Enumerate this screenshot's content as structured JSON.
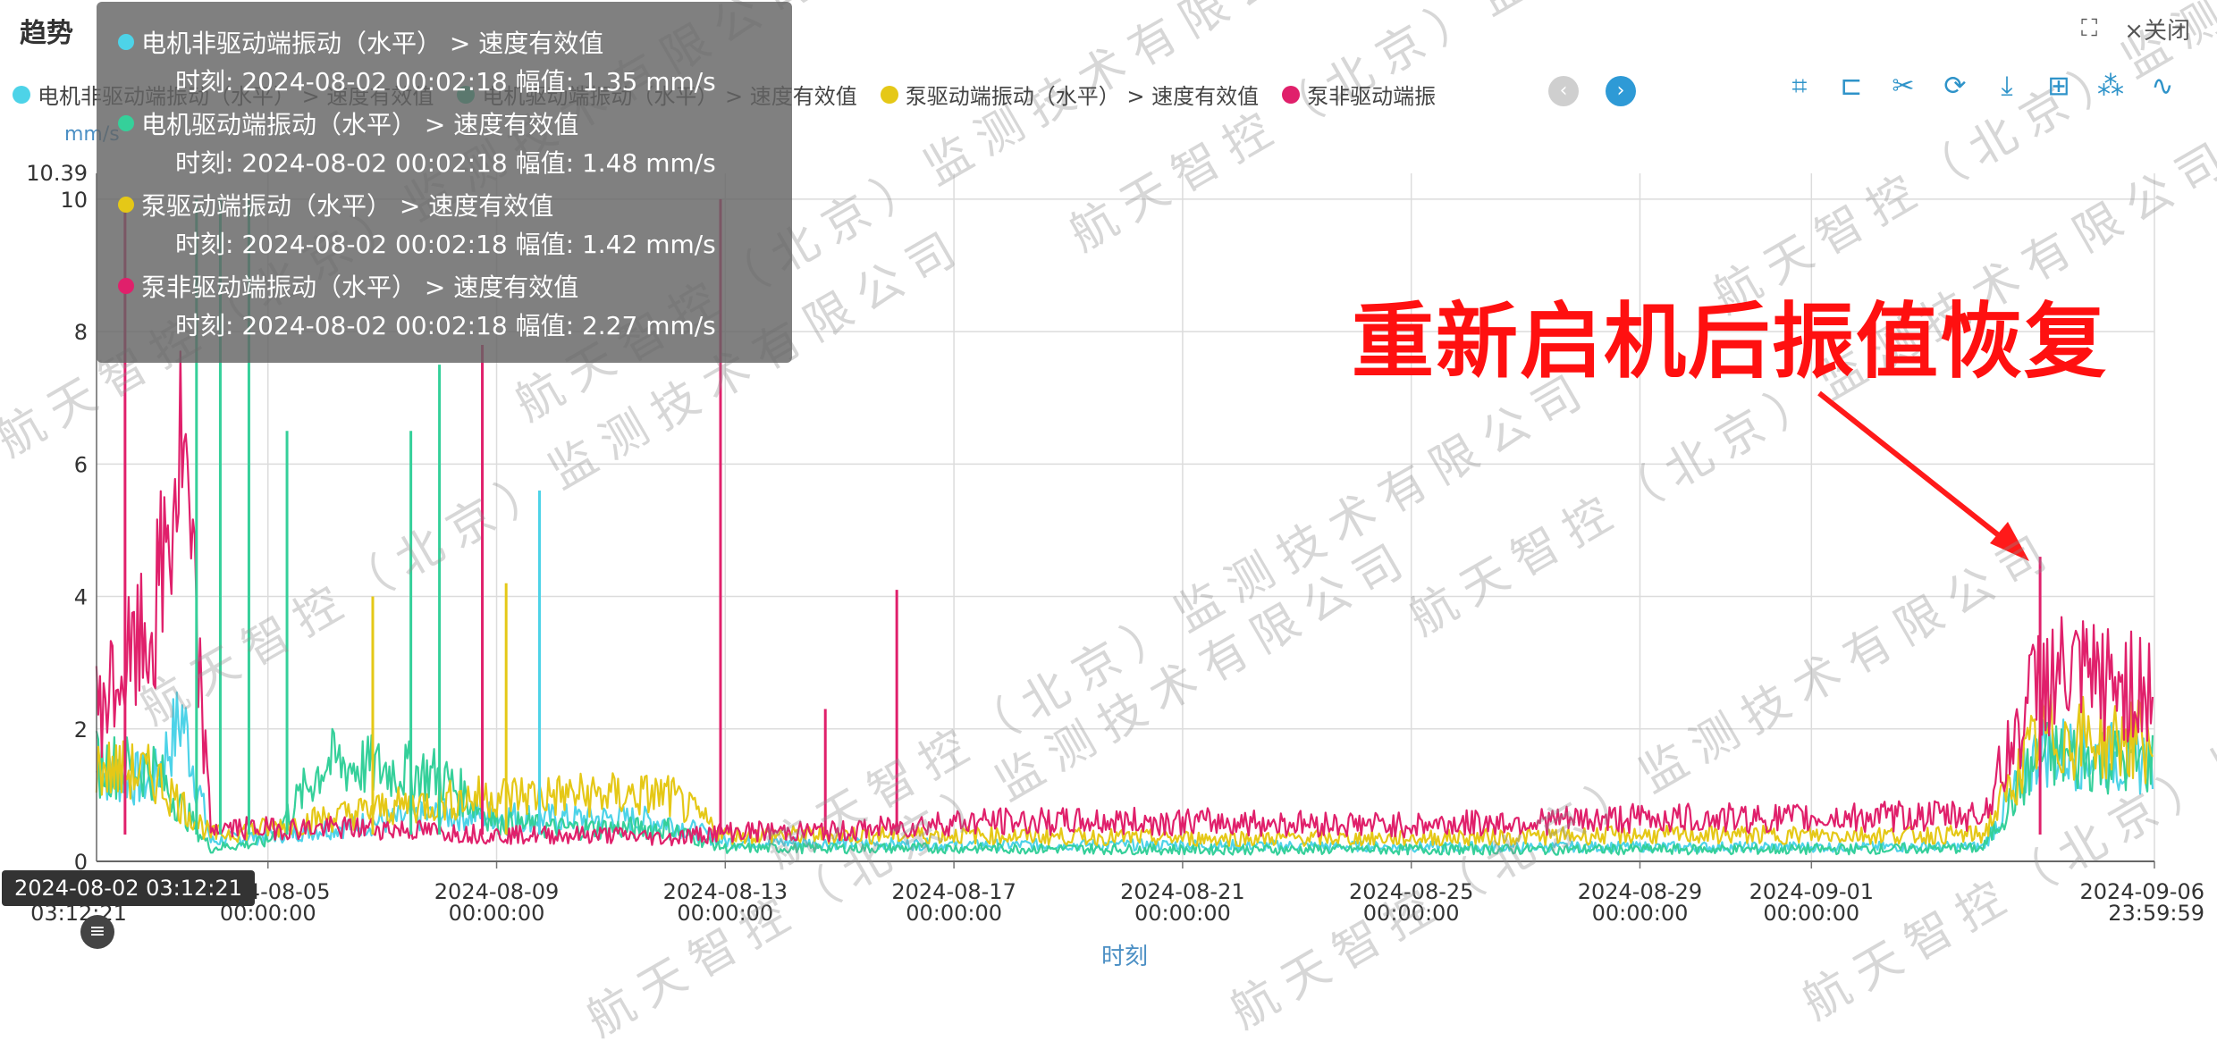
{
  "panel": {
    "title": "趋势",
    "fullscreen_icon": "⛶",
    "close_label": "×关闭"
  },
  "legend": {
    "items": [
      {
        "label": "电机非驱动端振动（水平） > 速度有效值",
        "color": "#4dd3e8"
      },
      {
        "label": "电机驱动端振动（水平） > 速度有效值",
        "color": "#35d09a"
      },
      {
        "label": "泵驱动端振动（水平） > 速度有效值",
        "color": "#e5c817"
      },
      {
        "label": "泵非驱动端振",
        "color": "#e0206b"
      }
    ],
    "prev_icon": "‹",
    "next_icon": "›"
  },
  "toolbox": {
    "tools": [
      {
        "name": "zoom-select-icon",
        "glyph": "⌗"
      },
      {
        "name": "zoom-back-icon",
        "glyph": "⊏"
      },
      {
        "name": "cut-icon",
        "glyph": "✂"
      },
      {
        "name": "refresh-icon",
        "glyph": "⟳"
      },
      {
        "name": "download-icon",
        "glyph": "⤓"
      },
      {
        "name": "add-icon",
        "glyph": "⊞"
      },
      {
        "name": "scatter-icon",
        "glyph": "⁂"
      },
      {
        "name": "line-icon",
        "glyph": "∿"
      }
    ]
  },
  "tooltip": {
    "entries": [
      {
        "series": "电机非驱动端振动（水平） > 速度有效值",
        "time_label": "时刻:",
        "time": "2024-08-02 00:02:18",
        "amp_label": "幅值:",
        "amp": "1.35 mm/s",
        "color": "#4dd3e8"
      },
      {
        "series": "电机驱动端振动（水平） > 速度有效值",
        "time_label": "时刻:",
        "time": "2024-08-02 00:02:18",
        "amp_label": "幅值:",
        "amp": "1.48 mm/s",
        "color": "#35d09a"
      },
      {
        "series": "泵驱动端振动（水平） > 速度有效值",
        "time_label": "时刻:",
        "time": "2024-08-02 00:02:18",
        "amp_label": "幅值:",
        "amp": "1.42 mm/s",
        "color": "#e5c817"
      },
      {
        "series": "泵非驱动端振动（水平） > 速度有效值",
        "time_label": "时刻:",
        "time": "2024-08-02 00:02:18",
        "amp_label": "幅值:",
        "amp": "2.27 mm/s",
        "color": "#e0206b"
      }
    ]
  },
  "hover_time": "2024-08-02 03:12:21",
  "zoom_handle_icon": "≡",
  "annotation": "重新启机后振值恢复",
  "watermarks": [
    "航天智控（北京）监测技术有限公司"
  ],
  "chart_data": {
    "type": "line",
    "ylabel": "mm/s",
    "xlabel": "时刻",
    "ylim": [
      0,
      10.39
    ],
    "y_ticks": [
      "0",
      "2",
      "4",
      "6",
      "8",
      "10"
    ],
    "y_max_label": "10.39",
    "x_ticks": [
      {
        "date": "2024-08-05",
        "time": "00:00:00"
      },
      {
        "date": "2024-08-09",
        "time": "00:00:00"
      },
      {
        "date": "2024-08-13",
        "time": "00:00:00"
      },
      {
        "date": "2024-08-17",
        "time": "00:00:00"
      },
      {
        "date": "2024-08-21",
        "time": "00:00:00"
      },
      {
        "date": "2024-08-25",
        "time": "00:00:00"
      },
      {
        "date": "2024-08-29",
        "time": "00:00:00"
      },
      {
        "date": "2024-09-01",
        "time": "00:00:00"
      },
      {
        "date": "2024-09-06",
        "time": "23:59:59"
      }
    ],
    "x_start_label": "03:12:21",
    "xlim": [
      "2024-08-02 00:02:18",
      "2024-09-06 23:59:59"
    ],
    "grid": true,
    "series": [
      {
        "name": "电机非驱动端振动（水平） > 速度有效值",
        "color": "#4dd3e8",
        "points": [
          [
            "2024-08-02",
            1.35
          ],
          [
            "2024-08-03",
            1.2
          ],
          [
            "2024-08-03 12:00",
            2.2
          ],
          [
            "2024-08-04",
            0.3
          ],
          [
            "2024-08-05",
            0.4
          ],
          [
            "2024-08-06",
            0.5
          ],
          [
            "2024-08-07",
            0.6
          ],
          [
            "2024-08-08",
            0.7
          ],
          [
            "2024-08-09",
            0.7
          ],
          [
            "2024-08-10",
            0.65
          ],
          [
            "2024-08-11",
            0.65
          ],
          [
            "2024-08-12",
            0.6
          ],
          [
            "2024-08-13",
            0.3
          ],
          [
            "2024-08-17",
            0.25
          ],
          [
            "2024-08-21",
            0.25
          ],
          [
            "2024-08-25",
            0.22
          ],
          [
            "2024-08-29",
            0.22
          ],
          [
            "2024-09-01",
            0.22
          ],
          [
            "2024-09-04",
            0.22
          ],
          [
            "2024-09-05",
            1.7
          ],
          [
            "2024-09-06 23:59:59",
            1.5
          ]
        ]
      },
      {
        "name": "电机驱动端振动（水平） > 速度有效值",
        "color": "#35d09a",
        "points": [
          [
            "2024-08-02",
            1.48
          ],
          [
            "2024-08-03",
            1.4
          ],
          [
            "2024-08-04",
            0.2
          ],
          [
            "2024-08-05",
            0.3
          ],
          [
            "2024-08-06",
            1.5
          ],
          [
            "2024-08-07",
            1.4
          ],
          [
            "2024-08-08",
            1.3
          ],
          [
            "2024-08-09",
            0.6
          ],
          [
            "2024-08-10",
            0.5
          ],
          [
            "2024-08-12",
            0.5
          ],
          [
            "2024-08-13",
            0.2
          ],
          [
            "2024-08-17",
            0.2
          ],
          [
            "2024-08-21",
            0.18
          ],
          [
            "2024-08-25",
            0.18
          ],
          [
            "2024-08-29",
            0.18
          ],
          [
            "2024-09-01",
            0.18
          ],
          [
            "2024-09-04",
            0.2
          ],
          [
            "2024-09-05",
            1.6
          ],
          [
            "2024-09-06 23:59:59",
            1.5
          ]
        ]
      },
      {
        "name": "泵驱动端振动（水平） > 速度有效值",
        "color": "#e5c817",
        "points": [
          [
            "2024-08-02",
            1.42
          ],
          [
            "2024-08-03",
            1.3
          ],
          [
            "2024-08-04",
            0.4
          ],
          [
            "2024-08-05",
            0.5
          ],
          [
            "2024-08-07",
            0.8
          ],
          [
            "2024-08-08",
            0.9
          ],
          [
            "2024-08-09",
            1.0
          ],
          [
            "2024-08-10",
            1.0
          ],
          [
            "2024-08-12",
            1.0
          ],
          [
            "2024-08-13",
            0.4
          ],
          [
            "2024-08-17",
            0.4
          ],
          [
            "2024-08-21",
            0.35
          ],
          [
            "2024-08-25",
            0.35
          ],
          [
            "2024-08-29",
            0.4
          ],
          [
            "2024-09-01",
            0.4
          ],
          [
            "2024-09-04",
            0.4
          ],
          [
            "2024-09-05",
            1.9
          ],
          [
            "2024-09-06 23:59:59",
            1.8
          ]
        ]
      },
      {
        "name": "泵非驱动端振动（水平） > 速度有效值",
        "color": "#e0206b",
        "points": [
          [
            "2024-08-02",
            2.27
          ],
          [
            "2024-08-03",
            3.5
          ],
          [
            "2024-08-03 12:00",
            6.2
          ],
          [
            "2024-08-04",
            0.5
          ],
          [
            "2024-08-05",
            0.5
          ],
          [
            "2024-08-07",
            0.5
          ],
          [
            "2024-08-09",
            0.4
          ],
          [
            "2024-08-11",
            0.4
          ],
          [
            "2024-08-12",
            0.35
          ],
          [
            "2024-08-13",
            0.45
          ],
          [
            "2024-08-15",
            0.45
          ],
          [
            "2024-08-17",
            0.6
          ],
          [
            "2024-08-21",
            0.6
          ],
          [
            "2024-08-25",
            0.55
          ],
          [
            "2024-08-29",
            0.65
          ],
          [
            "2024-09-01",
            0.65
          ],
          [
            "2024-09-04",
            0.7
          ],
          [
            "2024-09-05",
            2.8
          ],
          [
            "2024-09-06 23:59:59",
            2.6
          ]
        ]
      }
    ],
    "spikes": [
      {
        "at": "2024-08-02 12:00",
        "value": 10.0,
        "color": "#e0206b"
      },
      {
        "at": "2024-08-03 18:00",
        "value": 10.0,
        "color": "#35d09a"
      },
      {
        "at": "2024-08-04 04:00",
        "value": 10.0,
        "color": "#35d09a"
      },
      {
        "at": "2024-08-04 16:00",
        "value": 10.0,
        "color": "#35d09a"
      },
      {
        "at": "2024-08-05 08:00",
        "value": 6.5,
        "color": "#35d09a"
      },
      {
        "at": "2024-08-06 20:00",
        "value": 4.0,
        "color": "#e5c817"
      },
      {
        "at": "2024-08-07 12:00",
        "value": 6.5,
        "color": "#35d09a"
      },
      {
        "at": "2024-08-08 00:00",
        "value": 7.5,
        "color": "#35d09a"
      },
      {
        "at": "2024-08-08 18:00",
        "value": 7.8,
        "color": "#e0206b"
      },
      {
        "at": "2024-08-09 04:00",
        "value": 4.2,
        "color": "#e5c817"
      },
      {
        "at": "2024-08-09 18:00",
        "value": 5.6,
        "color": "#4dd3e8"
      },
      {
        "at": "2024-08-12 22:00",
        "value": 10.0,
        "color": "#e0206b"
      },
      {
        "at": "2024-08-14 18:00",
        "value": 2.3,
        "color": "#e0206b"
      },
      {
        "at": "2024-08-16 00:00",
        "value": 4.1,
        "color": "#e0206b"
      },
      {
        "at": "2024-09-05 00:00",
        "value": 4.6,
        "color": "#e0206b"
      }
    ]
  }
}
